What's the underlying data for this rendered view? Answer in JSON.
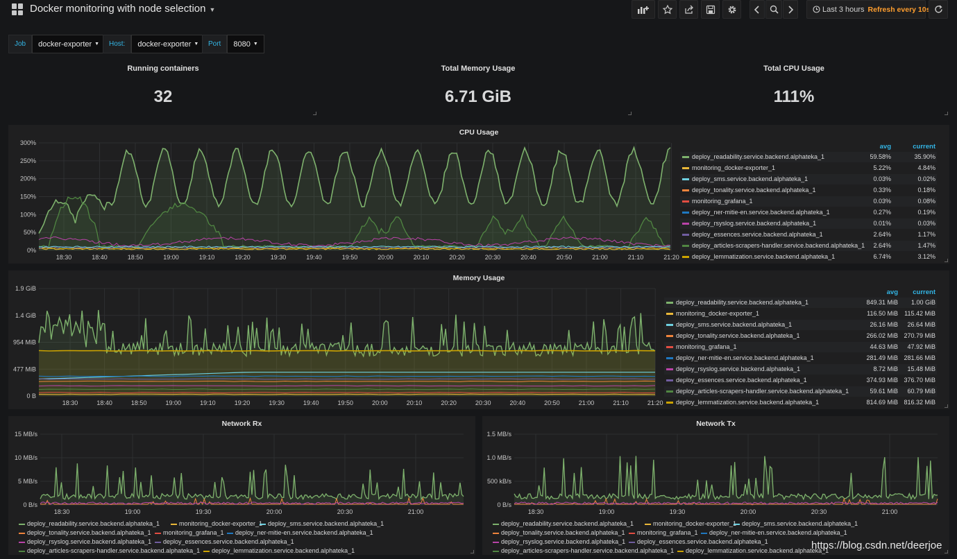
{
  "header": {
    "title": "Docker monitoring with node selection",
    "time_range": "Last 3 hours",
    "refresh": "Refresh every 10s"
  },
  "variables": [
    {
      "label": "Job",
      "value": "docker-exporter"
    },
    {
      "label": "Host:",
      "value": "docker-exporter"
    },
    {
      "label": "Port",
      "value": "8080"
    }
  ],
  "stats": [
    {
      "title": "Running containers",
      "value": "32"
    },
    {
      "title": "Total Memory Usage",
      "value": "6.71 GiB"
    },
    {
      "title": "Total CPU Usage",
      "value": "111%"
    }
  ],
  "colors": {
    "accent": "#33b5e5",
    "refresh": "#ff9e2e",
    "panel_bg": "#1f1f20",
    "page_bg": "#161719"
  },
  "series_names": [
    "deploy_readability.service.backend.alphateka_1",
    "monitoring_docker-exporter_1",
    "deploy_sms.service.backend.alphateka_1",
    "deploy_tonality.service.backend.alphateka_1",
    "monitoring_grafana_1",
    "deploy_ner-mitie-en.service.backend.alphateka_1",
    "deploy_rsyslog.service.backend.alphateka_1",
    "deploy_essences.service.backend.alphateka_1",
    "deploy_articles-scrapers-handler.service.backend.alphateka_1",
    "deploy_lemmatization.service.backend.alphateka_1"
  ],
  "series_colors": [
    "#7eb26d",
    "#eab839",
    "#6ed0e0",
    "#ef843c",
    "#e24d42",
    "#1f78c1",
    "#ba43a9",
    "#705da0",
    "#508642",
    "#cca300"
  ],
  "legend_headers": {
    "avg": "avg",
    "current": "current"
  },
  "cpu_legend": [
    {
      "avg": "59.58%",
      "current": "35.90%"
    },
    {
      "avg": "5.22%",
      "current": "4.84%"
    },
    {
      "avg": "0.03%",
      "current": "0.02%"
    },
    {
      "avg": "0.33%",
      "current": "0.18%"
    },
    {
      "avg": "0.03%",
      "current": "0.08%"
    },
    {
      "avg": "0.27%",
      "current": "0.19%"
    },
    {
      "avg": "0.01%",
      "current": "0.03%"
    },
    {
      "avg": "2.64%",
      "current": "1.17%"
    },
    {
      "avg": "2.64%",
      "current": "1.47%"
    },
    {
      "avg": "6.74%",
      "current": "3.12%"
    }
  ],
  "mem_legend": [
    {
      "avg": "849.31 MiB",
      "current": "1.00 GiB"
    },
    {
      "avg": "116.50 MiB",
      "current": "115.42 MiB"
    },
    {
      "avg": "26.16 MiB",
      "current": "26.64 MiB"
    },
    {
      "avg": "266.02 MiB",
      "current": "270.79 MiB"
    },
    {
      "avg": "44.63 MiB",
      "current": "47.92 MiB"
    },
    {
      "avg": "281.49 MiB",
      "current": "281.66 MiB"
    },
    {
      "avg": "8.72 MiB",
      "current": "15.48 MiB"
    },
    {
      "avg": "374.93 MiB",
      "current": "376.70 MiB"
    },
    {
      "avg": "59.61 MiB",
      "current": "60.79 MiB"
    },
    {
      "avg": "814.69 MiB",
      "current": "816.32 MiB"
    }
  ],
  "charts": {
    "cpu": {
      "title": "CPU Usage",
      "y_ticks": [
        "0%",
        "50%",
        "100%",
        "150%",
        "200%",
        "250%",
        "300%"
      ],
      "x_ticks": [
        "18:30",
        "18:40",
        "18:50",
        "19:00",
        "19:10",
        "19:20",
        "19:30",
        "19:40",
        "19:50",
        "20:00",
        "20:10",
        "20:20",
        "20:30",
        "20:40",
        "20:50",
        "21:00",
        "21:10",
        "21:20"
      ]
    },
    "memory": {
      "title": "Memory Usage",
      "y_ticks": [
        "0 B",
        "477 MiB",
        "954 MiB",
        "1.4 GiB",
        "1.9 GiB"
      ],
      "x_ticks": [
        "18:30",
        "18:40",
        "18:50",
        "19:00",
        "19:10",
        "19:20",
        "19:30",
        "19:40",
        "19:50",
        "20:00",
        "20:10",
        "20:20",
        "20:30",
        "20:40",
        "20:50",
        "21:00",
        "21:10",
        "21:20"
      ]
    },
    "rx": {
      "title": "Network Rx",
      "y_ticks": [
        "0 B/s",
        "5 MB/s",
        "10 MB/s",
        "15 MB/s"
      ],
      "x_ticks": [
        "18:30",
        "19:00",
        "19:30",
        "20:00",
        "20:30",
        "21:00"
      ]
    },
    "tx": {
      "title": "Network Tx",
      "y_ticks": [
        "0 B/s",
        "500 kB/s",
        "1.0 MB/s",
        "1.5 MB/s"
      ],
      "x_ticks": [
        "18:30",
        "19:00",
        "19:30",
        "20:00",
        "20:30",
        "21:00"
      ]
    }
  },
  "network_legend_visible": [
    "deploy_readability.service.backend.alphateka_1",
    "monitoring_docker-exporter_1",
    "deploy_sms.service.backend.alphateka_1",
    "deploy_tonality.service.backend.alphateka_1",
    "monitoring_grafana_1",
    "deploy_ner-mitie-en.service.backend.alphateka_1",
    "deploy_rsyslog.service.backend.alphateka_1",
    "deploy_essences.service.backend.alphateka_1",
    "deploy_articles-scrapers-handler.service.backend.alphateka_1",
    "deploy_lemmatization.service.backend.alphateka_1"
  ],
  "watermark": "https://blog.csdn.net/deerjoe",
  "icons": [
    "grid-icon",
    "add-panel-icon",
    "star-icon",
    "share-icon",
    "save-icon",
    "gear-icon",
    "chevron-left-icon",
    "zoom-out-icon",
    "chevron-right-icon",
    "clock-icon",
    "refresh-icon"
  ]
}
